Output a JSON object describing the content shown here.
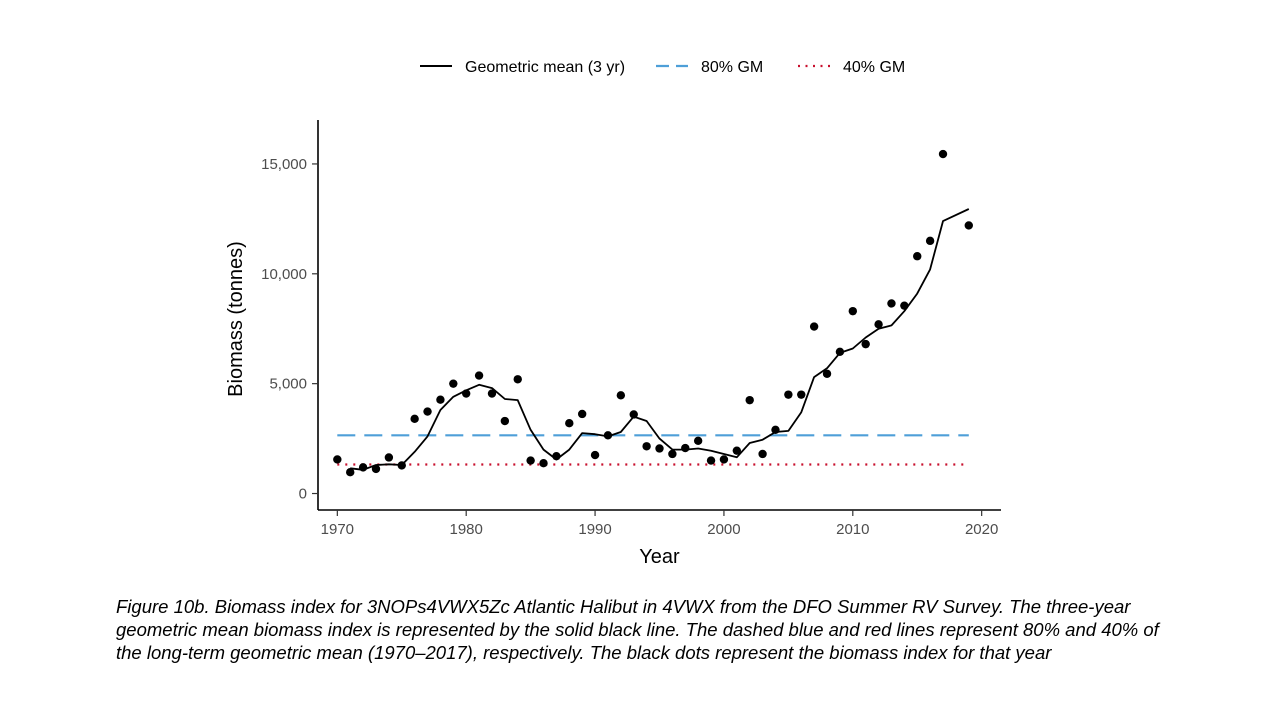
{
  "caption": "Figure 10b. Biomass index for 3NOPs4VWX5Zc Atlantic Halibut in 4VWX from the DFO Summer RV Survey. The three-year geometric mean biomass index is represented by the solid black line. The dashed blue and red lines represent 80% and 40% of the long-term geometric mean (1970–2017), respectively. The black dots represent the biomass index for that year",
  "chart_data": {
    "type": "scatter",
    "xlabel": "Year",
    "ylabel": "Biomass (tonnes)",
    "xlim": [
      1968.5,
      2021.5
    ],
    "ylim": [
      -750,
      17000
    ],
    "x_ticks": [
      1970,
      1980,
      1990,
      2000,
      2010,
      2020
    ],
    "x_tick_labels": [
      "1970",
      "1980",
      "1990",
      "2000",
      "2010",
      "2020"
    ],
    "y_ticks": [
      0,
      5000,
      10000,
      15000
    ],
    "y_tick_labels": [
      "0",
      "5,000",
      "10,000",
      "15,000"
    ],
    "grid": false,
    "legend_position": "top",
    "legend": [
      {
        "label": "Geometric mean (3 yr)",
        "style": "solid",
        "color": "#000000"
      },
      {
        "label": "80% GM",
        "style": "dashed",
        "color": "#4e9fd8"
      },
      {
        "label": "40% GM",
        "style": "dotted",
        "color": "#c8102e"
      }
    ],
    "points": {
      "color": "#000000",
      "x": [
        1970,
        1971,
        1972,
        1973,
        1974,
        1975,
        1976,
        1977,
        1978,
        1979,
        1980,
        1981,
        1982,
        1983,
        1984,
        1985,
        1986,
        1987,
        1988,
        1989,
        1990,
        1991,
        1992,
        1993,
        1994,
        1995,
        1996,
        1997,
        1998,
        1999,
        2000,
        2001,
        2002,
        2003,
        2004,
        2005,
        2006,
        2007,
        2008,
        2009,
        2010,
        2011,
        2012,
        2013,
        2014,
        2015,
        2016,
        2017,
        2019
      ],
      "y": [
        1550,
        970,
        1190,
        1120,
        1640,
        1280,
        3400,
        3730,
        4270,
        5000,
        4550,
        5370,
        4550,
        3300,
        5200,
        1500,
        1380,
        1700,
        3200,
        3620,
        1750,
        2650,
        4470,
        3600,
        2150,
        2050,
        1800,
        2070,
        2400,
        1500,
        1550,
        1950,
        4250,
        1800,
        2900,
        4500,
        4500,
        7600,
        5450,
        6450,
        8300,
        6800,
        7700,
        8650,
        8550,
        10800,
        11500,
        15450,
        12200
      ]
    },
    "series": [
      {
        "name": "Geometric mean (3 yr)",
        "color": "#000000",
        "style": "solid",
        "x": [
          1971,
          1972,
          1973,
          1974,
          1975,
          1976,
          1977,
          1978,
          1979,
          1980,
          1981,
          1982,
          1983,
          1984,
          1985,
          1986,
          1987,
          1988,
          1989,
          1990,
          1991,
          1992,
          1993,
          1994,
          1995,
          1996,
          1997,
          1998,
          1999,
          2000,
          2001,
          2002,
          2003,
          2004,
          2005,
          2006,
          2007,
          2008,
          2009,
          2010,
          2011,
          2012,
          2013,
          2014,
          2015,
          2016,
          2017,
          2019
        ],
        "y": [
          1150,
          1080,
          1300,
          1330,
          1300,
          1900,
          2600,
          3800,
          4400,
          4700,
          4950,
          4800,
          4300,
          4250,
          2900,
          2000,
          1550,
          2000,
          2750,
          2700,
          2600,
          2800,
          3500,
          3300,
          2500,
          2000,
          2000,
          2050,
          1950,
          1800,
          1650,
          2300,
          2450,
          2800,
          2850,
          3700,
          5300,
          5700,
          6400,
          6600,
          7100,
          7500,
          7650,
          8300,
          9100,
          10200,
          12400,
          12950
        ]
      },
      {
        "name": "80% GM",
        "color": "#4e9fd8",
        "style": "dashed",
        "x": [
          1970,
          2019
        ],
        "y": [
          2650,
          2650
        ]
      },
      {
        "name": "40% GM",
        "color": "#c8102e",
        "style": "dotted",
        "x": [
          1970,
          2019
        ],
        "y": [
          1320,
          1320
        ]
      }
    ]
  }
}
